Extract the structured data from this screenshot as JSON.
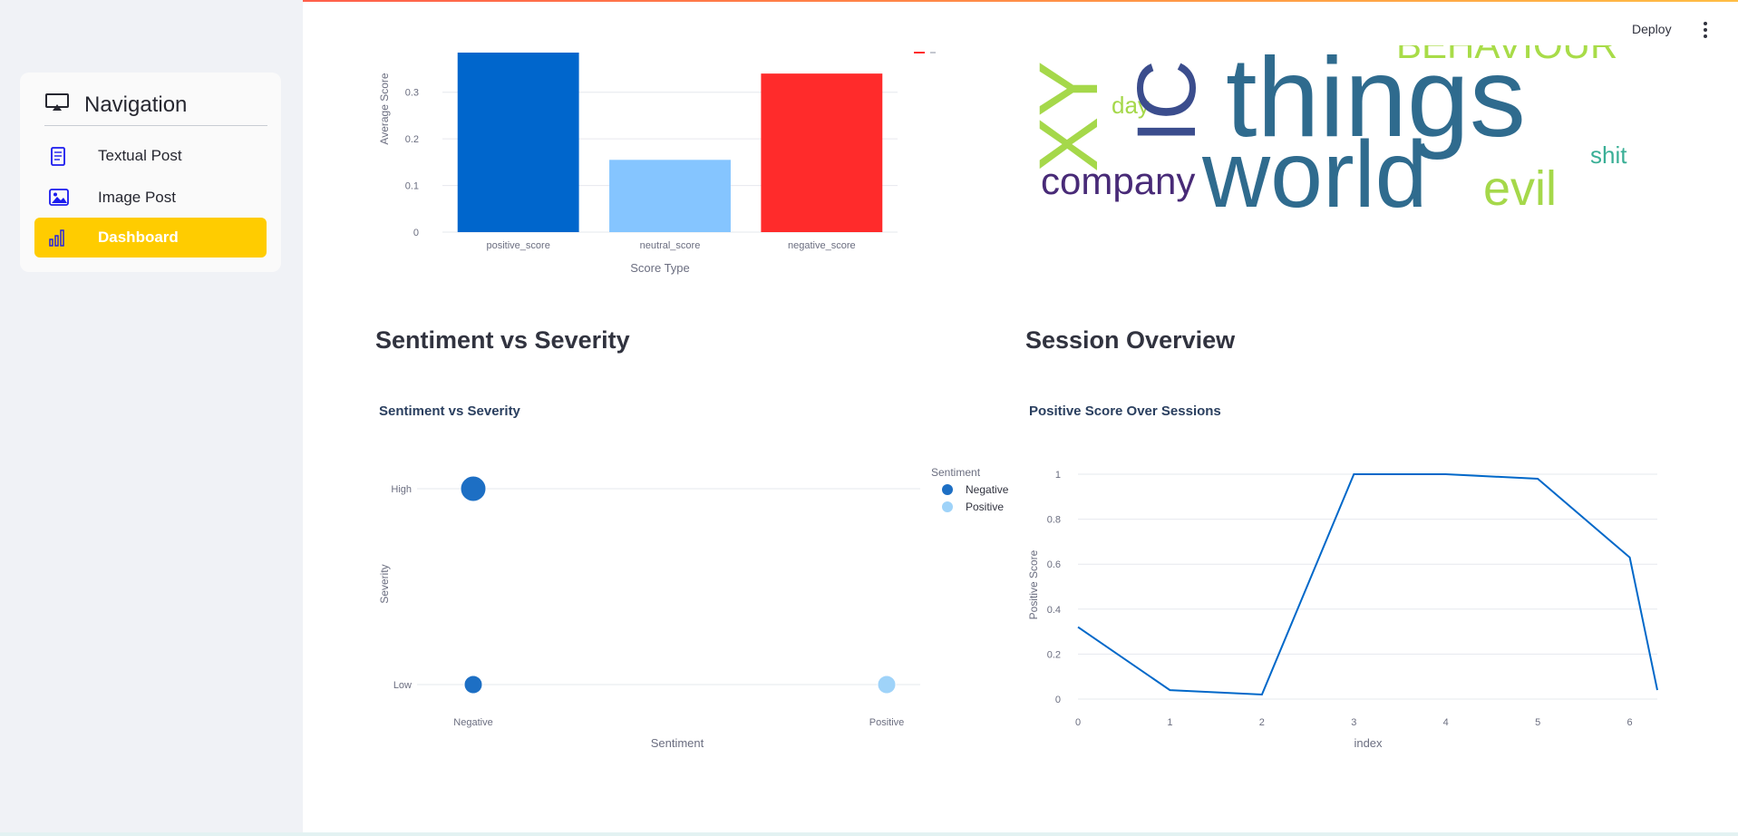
{
  "sidebar": {
    "title": "Navigation",
    "items": [
      {
        "label": "Textual Post",
        "icon": "document-icon",
        "active": false
      },
      {
        "label": "Image Post",
        "icon": "image-icon",
        "active": false
      },
      {
        "label": "Dashboard",
        "icon": "bar-chart-icon",
        "active": true
      }
    ]
  },
  "toolbar": {
    "deploy_label": "Deploy",
    "menu_icon": "kebab-menu-icon"
  },
  "colors": {
    "accent": "#ffcc00",
    "positive_bar": "#0066cc",
    "neutral_bar": "#85c5ff",
    "negative_bar": "#ff2b2b",
    "line": "#0068c9"
  },
  "sections": {
    "sentiment_vs_severity": "Sentiment vs Severity",
    "session_overview": "Session Overview"
  },
  "wordcloud": {
    "words": [
      "things",
      "world",
      "company",
      "evil",
      "day",
      "shit",
      "BEHAVIOUR",
      "XY",
      "IC"
    ]
  },
  "chart_data": [
    {
      "type": "bar",
      "title": "",
      "categories": [
        "positive_score",
        "neutral_score",
        "negative_score"
      ],
      "values": [
        0.385,
        0.155,
        0.34
      ],
      "colors": [
        "#0066cc",
        "#85c5ff",
        "#ff2b2b"
      ],
      "xlabel": "Score Type",
      "ylabel": "Average Score",
      "yticks": [
        0,
        0.1,
        0.2,
        0.3
      ],
      "ylim": [
        0,
        0.385
      ],
      "grid": true
    },
    {
      "type": "scatter",
      "title": "Sentiment vs Severity",
      "xlabel": "Sentiment",
      "ylabel": "Severity",
      "x_categories": [
        "Negative",
        "Positive"
      ],
      "y_categories": [
        "Low",
        "High"
      ],
      "legend_title": "Sentiment",
      "legend_position": "top-right",
      "series": [
        {
          "name": "Negative",
          "color": "#1d6fc4",
          "points": [
            {
              "x": "Negative",
              "y": "High",
              "size": 3
            },
            {
              "x": "Negative",
              "y": "Low",
              "size": 2
            }
          ]
        },
        {
          "name": "Positive",
          "color": "#9fd3f9",
          "points": [
            {
              "x": "Positive",
              "y": "Low",
              "size": 2
            }
          ]
        }
      ]
    },
    {
      "type": "line",
      "title": "Positive Score Over Sessions",
      "xlabel": "index",
      "ylabel": "Positive Score",
      "x": [
        0,
        1,
        2,
        3,
        4,
        5,
        6,
        6.3
      ],
      "y": [
        0.32,
        0.04,
        0.02,
        1.0,
        1.0,
        0.98,
        0.63,
        0.04
      ],
      "xticks": [
        0,
        1,
        2,
        3,
        4,
        5,
        6
      ],
      "yticks": [
        0,
        0.2,
        0.4,
        0.6,
        0.8,
        1
      ],
      "xlim": [
        0,
        6.3
      ],
      "ylim": [
        0,
        1
      ],
      "grid": true
    }
  ]
}
